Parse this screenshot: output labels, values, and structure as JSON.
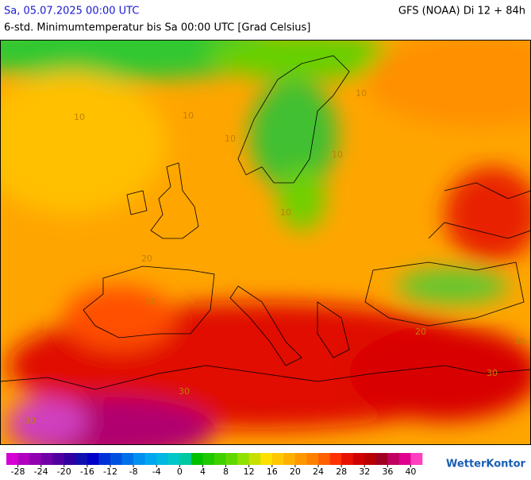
{
  "header": {
    "date": "Sa, 05.07.2025 00:00 UTC",
    "model": "GFS (NOAA) Di 12 + 84h",
    "subtitle": "6-std. Minimumtemperatur bis Sa 00:00 UTC [Grad Celsius]"
  },
  "map": {
    "contour_labels": [
      "10",
      "10",
      "10",
      "10",
      "10",
      "10",
      "20",
      "20",
      "30",
      "30",
      "30",
      "30",
      "30"
    ]
  },
  "legend": {
    "range": [
      -30,
      42
    ],
    "ticks": [
      -28,
      -24,
      -20,
      -16,
      -12,
      -8,
      -4,
      0,
      4,
      8,
      12,
      16,
      20,
      24,
      28,
      32,
      36,
      40
    ],
    "colors": [
      "#d400d4",
      "#b000c0",
      "#9000b0",
      "#7000a8",
      "#5000a0",
      "#3000a0",
      "#1010b0",
      "#0000c8",
      "#0030d8",
      "#0050e0",
      "#0070e8",
      "#0090f0",
      "#00a8f0",
      "#00b8e0",
      "#00c8c8",
      "#00c8a0",
      "#00c000",
      "#20c800",
      "#40d000",
      "#60d800",
      "#90e000",
      "#c8e000",
      "#ffe000",
      "#ffc800",
      "#ffb000",
      "#ff9800",
      "#ff8000",
      "#ff6000",
      "#ff3000",
      "#e81000",
      "#d00000",
      "#b80000",
      "#a00020",
      "#c00060",
      "#e00090",
      "#ff40c0"
    ]
  },
  "brand": "WetterKontor"
}
